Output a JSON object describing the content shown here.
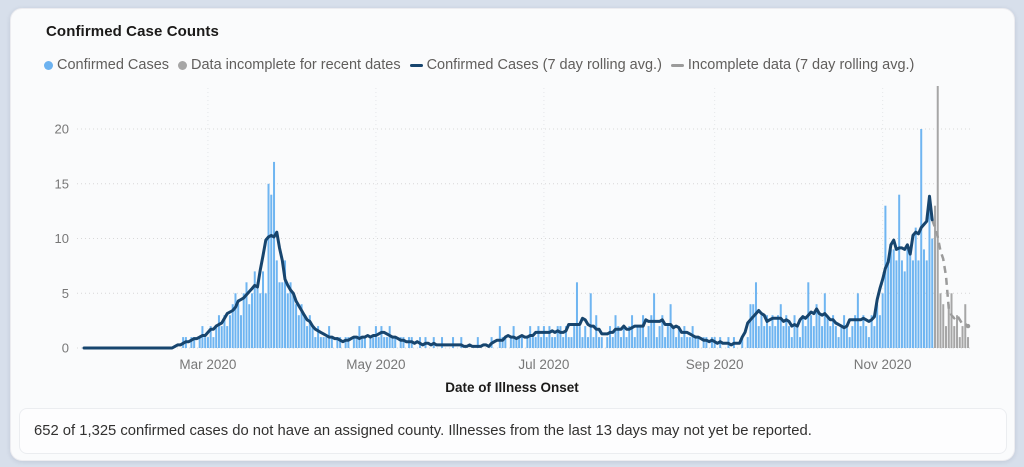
{
  "card": {
    "title": "Confirmed Case Counts"
  },
  "legend": {
    "items": [
      {
        "label": "Confirmed Cases",
        "glyph": "circle",
        "color": "#6cb2f0"
      },
      {
        "label": "Data incomplete for recent dates",
        "glyph": "circle",
        "color": "#a6a6a6"
      },
      {
        "label": "Confirmed Cases (7 day rolling avg.)",
        "glyph": "line",
        "color": "#17456e"
      },
      {
        "label": "Incomplete data (7 day rolling avg.)",
        "glyph": "line",
        "color": "#9b9b9b"
      }
    ]
  },
  "chart_data": {
    "type": "bar",
    "title": "Confirmed Case Counts",
    "xlabel": "Date of Illness Onset",
    "ylabel": "",
    "ylim": [
      0,
      20
    ],
    "yticks": [
      0,
      5,
      10,
      15,
      20
    ],
    "x_ticks": [
      {
        "label": "Mar 2020",
        "day": 45
      },
      {
        "label": "May 2020",
        "day": 106
      },
      {
        "label": "Jul 2020",
        "day": 167
      },
      {
        "label": "Sep 2020",
        "day": 229
      },
      {
        "label": "Nov 2020",
        "day": 290
      }
    ],
    "grid": "dotted",
    "legend_position": "top",
    "rolling_window": 7,
    "incomplete_start_index": 309,
    "series": [
      {
        "name": "Confirmed Cases",
        "type": "bar",
        "color": "#6fb5f1"
      },
      {
        "name": "Data incomplete for recent dates",
        "type": "bar",
        "color": "#a6a6a6"
      },
      {
        "name": "Confirmed Cases (7 day rolling avg.)",
        "type": "line",
        "color": "#17456e"
      },
      {
        "name": "Incomplete data (7 day rolling avg.)",
        "type": "line",
        "color": "#9b9b9b"
      }
    ],
    "daily_values": [
      0,
      0,
      0,
      0,
      0,
      0,
      0,
      0,
      0,
      0,
      0,
      0,
      0,
      0,
      0,
      0,
      0,
      0,
      0,
      0,
      0,
      0,
      0,
      0,
      0,
      0,
      0,
      0,
      0,
      0,
      0,
      0,
      0,
      0,
      0,
      0,
      1,
      1,
      0,
      1,
      1,
      0,
      1,
      2,
      1,
      1,
      2,
      1,
      2,
      3,
      2,
      3,
      2,
      3,
      4,
      5,
      4,
      3,
      5,
      6,
      4,
      5,
      7,
      6,
      5,
      7,
      5,
      15,
      14,
      17,
      8,
      6,
      6,
      8,
      5,
      6,
      5,
      4,
      3,
      4,
      3,
      2,
      3,
      2,
      1,
      2,
      1,
      1,
      1,
      2,
      1,
      0,
      1,
      1,
      0,
      1,
      1,
      0,
      1,
      1,
      2,
      1,
      1,
      0,
      1,
      1,
      2,
      1,
      2,
      1,
      1,
      2,
      1,
      1,
      0,
      1,
      1,
      0,
      1,
      1,
      0,
      0,
      1,
      0,
      1,
      0,
      0,
      1,
      0,
      0,
      1,
      0,
      0,
      0,
      1,
      0,
      0,
      1,
      0,
      0,
      0,
      0,
      0,
      1,
      0,
      0,
      0,
      0,
      1,
      0,
      0,
      2,
      1,
      1,
      0,
      1,
      2,
      1,
      1,
      1,
      0,
      1,
      2,
      1,
      1,
      2,
      1,
      2,
      1,
      2,
      1,
      1,
      2,
      2,
      1,
      2,
      1,
      1,
      2,
      6,
      2,
      1,
      2,
      1,
      5,
      1,
      3,
      1,
      1,
      0,
      1,
      2,
      1,
      3,
      2,
      1,
      2,
      1,
      2,
      3,
      1,
      2,
      2,
      3,
      1,
      2,
      3,
      5,
      1,
      2,
      3,
      1,
      2,
      4,
      2,
      1,
      2,
      1,
      2,
      1,
      1,
      2,
      1,
      1,
      0,
      1,
      1,
      0,
      1,
      1,
      0,
      1,
      0,
      0,
      1,
      0,
      1,
      0,
      0,
      1,
      0,
      1,
      4,
      4,
      6,
      2,
      3,
      2,
      3,
      2,
      3,
      2,
      3,
      4,
      2,
      3,
      2,
      1,
      3,
      2,
      1,
      3,
      2,
      6,
      3,
      2,
      4,
      3,
      2,
      5,
      3,
      2,
      3,
      2,
      1,
      2,
      3,
      2,
      1,
      2,
      3,
      5,
      2,
      3,
      2,
      1,
      3,
      2,
      4,
      3,
      5,
      13,
      8,
      9,
      9,
      8,
      14,
      8,
      7,
      9,
      9,
      8,
      11,
      8,
      20,
      9,
      8,
      13,
      10,
      13,
      24,
      5,
      4,
      2,
      4,
      5,
      2,
      3,
      1,
      2,
      4,
      1
    ]
  },
  "footnote": {
    "text": "652 of 1,325 confirmed cases do not have an assigned county. Illnesses from the last 13 days may not yet be reported."
  },
  "colors": {
    "page_background": "#d7dfeb",
    "card_background": "#fafbfc",
    "bar_confirmed": "#6fb5f1",
    "bar_incomplete": "#a6a6a6",
    "line_confirmed": "#17456e",
    "line_incomplete": "#9b9b9b",
    "gridline": "#d8d8d8",
    "tick_label": "#777777"
  }
}
